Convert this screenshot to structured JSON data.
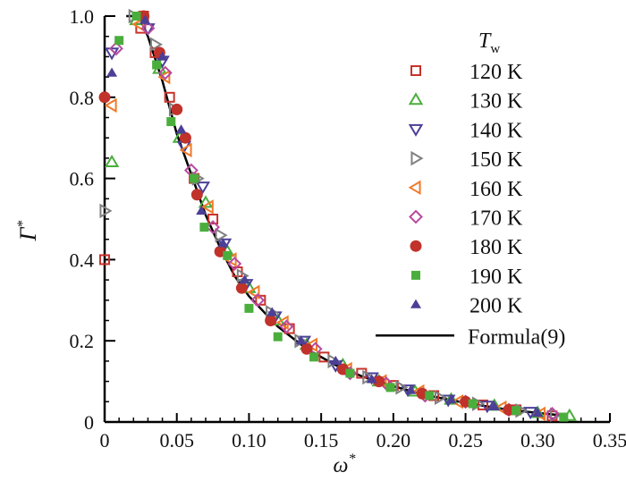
{
  "chart_data": {
    "type": "scatter",
    "title": "",
    "xlabel": "ω",
    "xlabel_sup": "*",
    "ylabel": "Γ",
    "ylabel_sup": "*",
    "xlim": [
      0,
      0.35
    ],
    "ylim": [
      0,
      1.0
    ],
    "xticks": [
      "0",
      "0.05",
      "0.10",
      "0.15",
      "0.20",
      "0.25",
      "0.30",
      "0.35"
    ],
    "xtick_values": [
      0,
      0.05,
      0.1,
      0.15,
      0.2,
      0.25,
      0.3,
      0.35
    ],
    "yticks": [
      "0",
      "0.2",
      "0.4",
      "0.6",
      "0.8",
      "1.0"
    ],
    "ytick_values": [
      0,
      0.2,
      0.4,
      0.6,
      0.8,
      1.0
    ],
    "grid": false,
    "legend_position": "top-right",
    "legend_title": "T",
    "legend_title_sub": "w",
    "series": [
      {
        "name": "120 K",
        "marker": "square-open",
        "color": "#c8322a",
        "points": [
          [
            0.0,
            0.4
          ],
          [
            0.027,
            1.0
          ],
          [
            0.025,
            0.97
          ],
          [
            0.035,
            0.91
          ],
          [
            0.045,
            0.8
          ],
          [
            0.062,
            0.6
          ],
          [
            0.075,
            0.5
          ],
          [
            0.092,
            0.37
          ],
          [
            0.108,
            0.3
          ],
          [
            0.128,
            0.23
          ],
          [
            0.152,
            0.16
          ],
          [
            0.178,
            0.12
          ],
          [
            0.2,
            0.09
          ],
          [
            0.228,
            0.065
          ],
          [
            0.262,
            0.042
          ],
          [
            0.285,
            0.03
          ],
          [
            0.31,
            0.015
          ]
        ]
      },
      {
        "name": "130 K",
        "marker": "triangle-up-open",
        "color": "#4aae3c",
        "points": [
          [
            0.005,
            0.64
          ],
          [
            0.022,
            0.99
          ],
          [
            0.038,
            0.87
          ],
          [
            0.052,
            0.7
          ],
          [
            0.07,
            0.54
          ],
          [
            0.085,
            0.42
          ],
          [
            0.1,
            0.33
          ],
          [
            0.12,
            0.25
          ],
          [
            0.14,
            0.19
          ],
          [
            0.165,
            0.14
          ],
          [
            0.19,
            0.1
          ],
          [
            0.215,
            0.075
          ],
          [
            0.24,
            0.055
          ],
          [
            0.27,
            0.04
          ],
          [
            0.3,
            0.022
          ],
          [
            0.322,
            0.015
          ]
        ]
      },
      {
        "name": "140 K",
        "marker": "triangle-down-open",
        "color": "#4b3f96",
        "points": [
          [
            0.005,
            0.91
          ],
          [
            0.03,
            0.97
          ],
          [
            0.04,
            0.89
          ],
          [
            0.055,
            0.68
          ],
          [
            0.068,
            0.58
          ],
          [
            0.083,
            0.44
          ],
          [
            0.098,
            0.34
          ],
          [
            0.118,
            0.26
          ],
          [
            0.138,
            0.2
          ],
          [
            0.16,
            0.14
          ],
          [
            0.185,
            0.11
          ],
          [
            0.21,
            0.08
          ],
          [
            0.238,
            0.055
          ],
          [
            0.265,
            0.04
          ],
          [
            0.295,
            0.025
          ]
        ]
      },
      {
        "name": "150 K",
        "marker": "triangle-right-open",
        "color": "#808080",
        "points": [
          [
            0.0,
            0.52
          ],
          [
            0.02,
            1.0
          ],
          [
            0.035,
            0.93
          ],
          [
            0.048,
            0.77
          ],
          [
            0.064,
            0.6
          ],
          [
            0.08,
            0.46
          ],
          [
            0.095,
            0.36
          ],
          [
            0.115,
            0.27
          ],
          [
            0.135,
            0.2
          ],
          [
            0.158,
            0.15
          ],
          [
            0.182,
            0.11
          ],
          [
            0.205,
            0.085
          ],
          [
            0.232,
            0.06
          ],
          [
            0.258,
            0.045
          ],
          [
            0.288,
            0.028
          ],
          [
            0.312,
            0.018
          ]
        ]
      },
      {
        "name": "160 K",
        "marker": "triangle-left-open",
        "color": "#f07a2a",
        "points": [
          [
            0.005,
            0.78
          ],
          [
            0.024,
            0.98
          ],
          [
            0.042,
            0.85
          ],
          [
            0.057,
            0.67
          ],
          [
            0.072,
            0.53
          ],
          [
            0.088,
            0.4
          ],
          [
            0.104,
            0.32
          ],
          [
            0.124,
            0.245
          ],
          [
            0.144,
            0.19
          ],
          [
            0.168,
            0.13
          ],
          [
            0.192,
            0.1
          ],
          [
            0.218,
            0.075
          ],
          [
            0.245,
            0.05
          ],
          [
            0.275,
            0.035
          ],
          [
            0.302,
            0.02
          ]
        ]
      },
      {
        "name": "170 K",
        "marker": "diamond-open",
        "color": "#b84aa0",
        "points": [
          [
            0.008,
            0.92
          ],
          [
            0.03,
            0.97
          ],
          [
            0.042,
            0.86
          ],
          [
            0.06,
            0.62
          ],
          [
            0.075,
            0.48
          ],
          [
            0.09,
            0.39
          ],
          [
            0.106,
            0.3
          ],
          [
            0.126,
            0.235
          ],
          [
            0.146,
            0.18
          ],
          [
            0.17,
            0.12
          ],
          [
            0.195,
            0.095
          ],
          [
            0.222,
            0.065
          ],
          [
            0.25,
            0.05
          ],
          [
            0.28,
            0.03
          ],
          [
            0.31,
            0.02
          ]
        ]
      },
      {
        "name": "180 K",
        "marker": "circle-filled",
        "color": "#c0322a",
        "points": [
          [
            0.0,
            0.8
          ],
          [
            0.027,
            1.0
          ],
          [
            0.038,
            0.91
          ],
          [
            0.05,
            0.77
          ],
          [
            0.056,
            0.7
          ],
          [
            0.064,
            0.56
          ],
          [
            0.08,
            0.42
          ],
          [
            0.095,
            0.33
          ],
          [
            0.115,
            0.25
          ],
          [
            0.14,
            0.18
          ],
          [
            0.165,
            0.13
          ],
          [
            0.19,
            0.1
          ],
          [
            0.22,
            0.07
          ],
          [
            0.25,
            0.05
          ],
          [
            0.28,
            0.03
          ]
        ]
      },
      {
        "name": "190 K",
        "marker": "square-filled",
        "color": "#4aae3c",
        "points": [
          [
            0.01,
            0.94
          ],
          [
            0.022,
            1.0
          ],
          [
            0.036,
            0.88
          ],
          [
            0.046,
            0.74
          ],
          [
            0.062,
            0.6
          ],
          [
            0.069,
            0.48
          ],
          [
            0.085,
            0.41
          ],
          [
            0.1,
            0.28
          ],
          [
            0.12,
            0.21
          ],
          [
            0.145,
            0.16
          ],
          [
            0.17,
            0.12
          ],
          [
            0.198,
            0.085
          ],
          [
            0.225,
            0.065
          ],
          [
            0.255,
            0.045
          ],
          [
            0.285,
            0.028
          ],
          [
            0.318,
            0.012
          ]
        ]
      },
      {
        "name": "200 K",
        "marker": "triangle-up-filled",
        "color": "#4b3f96",
        "points": [
          [
            0.005,
            0.86
          ],
          [
            0.028,
            0.99
          ],
          [
            0.04,
            0.9
          ],
          [
            0.053,
            0.72
          ],
          [
            0.067,
            0.52
          ],
          [
            0.082,
            0.44
          ],
          [
            0.097,
            0.35
          ],
          [
            0.116,
            0.27
          ],
          [
            0.136,
            0.2
          ],
          [
            0.16,
            0.15
          ],
          [
            0.185,
            0.105
          ],
          [
            0.212,
            0.078
          ],
          [
            0.24,
            0.055
          ],
          [
            0.27,
            0.038
          ],
          [
            0.3,
            0.022
          ]
        ]
      }
    ],
    "line": {
      "name": "Formula(9)",
      "color": "#000000",
      "x": [
        0.015,
        0.02,
        0.025,
        0.03,
        0.04,
        0.05,
        0.06,
        0.07,
        0.08,
        0.09,
        0.1,
        0.12,
        0.14,
        0.16,
        0.18,
        0.2,
        0.22,
        0.25,
        0.28,
        0.32
      ],
      "y": [
        1.0,
        1.0,
        0.99,
        0.95,
        0.84,
        0.71,
        0.61,
        0.51,
        0.43,
        0.36,
        0.31,
        0.235,
        0.18,
        0.14,
        0.11,
        0.088,
        0.068,
        0.047,
        0.03,
        0.015
      ]
    }
  }
}
